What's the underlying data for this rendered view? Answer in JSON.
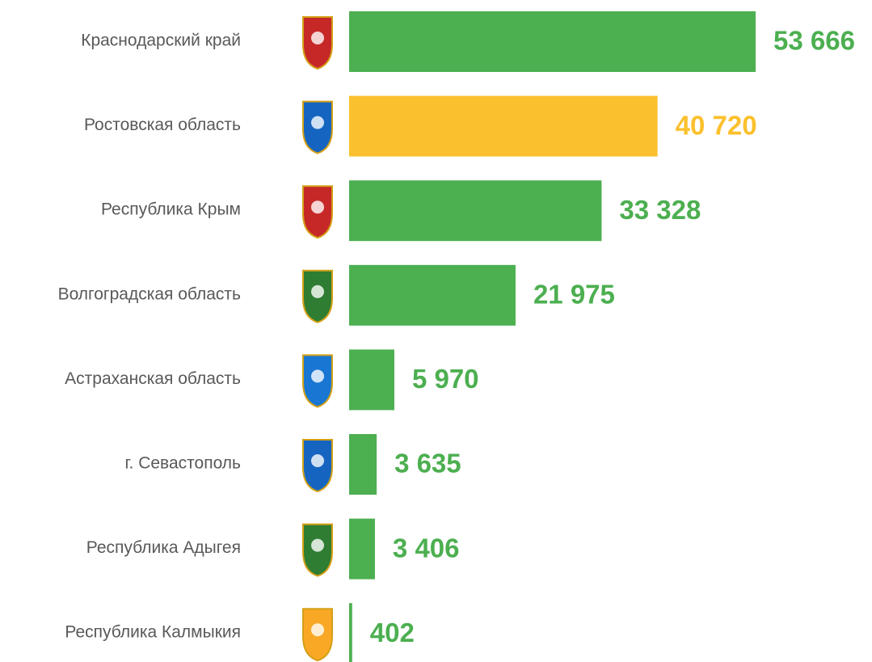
{
  "chart_data": {
    "type": "bar",
    "orientation": "horizontal",
    "categories": [
      "Краснодарский край",
      "Ростовская область",
      "Республика Крым",
      "Волгоградская область",
      "Астраханская область",
      "г. Севастополь",
      "Республика Адыгея",
      "Республика Калмыкия"
    ],
    "values": [
      53666,
      40720,
      33328,
      21975,
      5970,
      3635,
      3406,
      402
    ],
    "value_labels": [
      "53 666",
      "40 720",
      "33 328",
      "21 975",
      "5 970",
      "3 635",
      "3 406",
      "402"
    ],
    "colors": [
      "#4caf50",
      "#fbc02d",
      "#4caf50",
      "#4caf50",
      "#4caf50",
      "#4caf50",
      "#4caf50",
      "#4caf50"
    ]
  }
}
